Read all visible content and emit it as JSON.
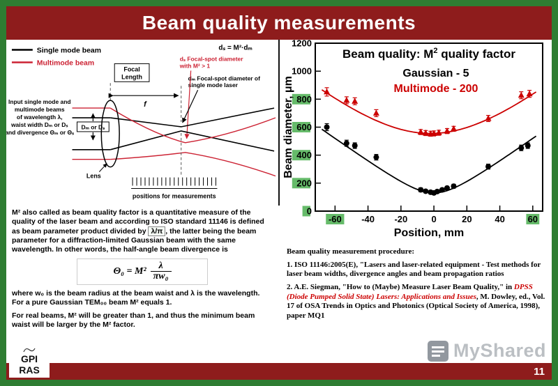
{
  "slide": {
    "title": "Beam quality measurements",
    "page_number": "11"
  },
  "colors": {
    "border_green": "#2e7d32",
    "header_maroon": "#8e1c1c",
    "accent_red": "#cc0000",
    "diagram_red": "#cc2233",
    "highlight_green": "#66bb6a",
    "watermark_gray": "#8f969c"
  },
  "logo": {
    "line1": "GPI",
    "line2": "RAS"
  },
  "watermark": {
    "text": "MyShared"
  },
  "diagram": {
    "legend": [
      {
        "label": "Single mode beam",
        "color": "#000000"
      },
      {
        "label": "Multimode beam",
        "color": "#cc2233"
      }
    ],
    "ds_equation": "dₛ = M²·dₘ",
    "ds_note_line1": "dₛ Focal-spot diameter",
    "ds_note_line2": "with M² > 1",
    "dm_note_line1": "dₘ Focal-spot diameter of",
    "dm_note_line2": "single mode laser",
    "focal_length_line1": "Focal",
    "focal_length_line2": "Length",
    "f_label": "f",
    "input_lines": [
      "Input single mode and",
      "multimode beams",
      "of wavelength λ,",
      "waist width Dₘ or Dₛ",
      "and divergence Θₘ or Θₛ"
    ],
    "width_box": "Dₘ or Dₛ",
    "lens_label": "Lens",
    "positions_label": "positions for measurements"
  },
  "left_text": {
    "p1": [
      {
        "t": "M² also called as beam quality factor is "
      },
      {
        "t": "a quantitative measure of the quality",
        "b": true
      },
      {
        "t": " of the laser beam and according to ISO standard 11146 is defined as beam parameter product divided by "
      },
      {
        "t": "λ/π",
        "box": true
      },
      {
        "t": ",  the latter being the beam parameter for a diffraction-limited Gaussian beam with the same wavelength. In other words, the half-angle beam divergence is"
      }
    ],
    "formula": {
      "lhs": "Θ₀ = M²",
      "num": "λ",
      "den": "πw₀"
    },
    "p2": "where w₀ is the beam radius at the beam waist and λ is the wavelength. For a pure Gaussian TEM₀₀ beam M² equals 1.",
    "p3": "For real beams, M² will be greater than 1, and thus the minimum beam waist will be larger by the M² factor."
  },
  "references": {
    "heading": "Beam quality measurement procedure:",
    "item1": "1. ISO 11146:2005(E), \"Lasers and laser-related equipment - Test methods for laser beam widths, divergence angles and beam propagation ratios",
    "item2": [
      {
        "t": "2. A.E. Siegman, \"How to (Maybe) Measure Laser Beam Quality,\" in "
      },
      {
        "t": "DPSS (Diode Pumped Solid State) Lasers: Applications and Issues",
        "red": true,
        "i": true
      },
      {
        "t": ", M. Dowley, ed., Vol. 17 of OSA Trends in Optics and Photonics (Optical Society of America, 1998), paper MQ1"
      }
    ]
  },
  "chart_data": {
    "type": "scatter",
    "title_parts": {
      "pre": "Beam quality: M",
      "sup": "2",
      "post": " quality factor"
    },
    "xlabel": "Position, mm",
    "ylabel": "Beam diameter, μm",
    "xlim": [
      -72,
      66
    ],
    "ylim": [
      0,
      1200
    ],
    "xticks": [
      -60,
      -40,
      -20,
      0,
      20,
      40,
      60
    ],
    "yticks": [
      0,
      200,
      400,
      600,
      800,
      1000,
      1200
    ],
    "highlighted_xticks": [
      -60,
      60
    ],
    "highlighted_yticks": [
      0,
      200,
      400,
      600,
      800
    ],
    "grid": false,
    "legend_position": "top-center",
    "series": [
      {
        "name": "Gaussian  -  5",
        "color": "#000000",
        "marker": "circle",
        "fit": {
          "d0": 130,
          "z0": 0,
          "zR": 15.5
        },
        "points": [
          [
            -65,
            600,
            25
          ],
          [
            -53,
            485,
            22
          ],
          [
            -48,
            468,
            20
          ],
          [
            -35,
            385,
            20
          ],
          [
            -8,
            152,
            14
          ],
          [
            -5,
            142,
            12
          ],
          [
            -2,
            135,
            12
          ],
          [
            0,
            130,
            12
          ],
          [
            2,
            140,
            12
          ],
          [
            5,
            152,
            12
          ],
          [
            8,
            165,
            12
          ],
          [
            12,
            178,
            14
          ],
          [
            33,
            318,
            18
          ],
          [
            53,
            452,
            20
          ],
          [
            57,
            468,
            20
          ]
        ]
      },
      {
        "name": "Multimode - 200",
        "color": "#cc0000",
        "marker": "triangle",
        "fit": {
          "d0": 555,
          "z0": -2,
          "zR": 55
        },
        "points": [
          [
            -65,
            852,
            30
          ],
          [
            -53,
            792,
            25
          ],
          [
            -48,
            785,
            25
          ],
          [
            -35,
            700,
            25
          ],
          [
            -8,
            565,
            18
          ],
          [
            -5,
            558,
            18
          ],
          [
            -2,
            553,
            18
          ],
          [
            0,
            555,
            18
          ],
          [
            3,
            560,
            18
          ],
          [
            8,
            572,
            18
          ],
          [
            12,
            588,
            18
          ],
          [
            33,
            662,
            22
          ],
          [
            53,
            828,
            25
          ],
          [
            58,
            838,
            25
          ]
        ]
      }
    ]
  }
}
